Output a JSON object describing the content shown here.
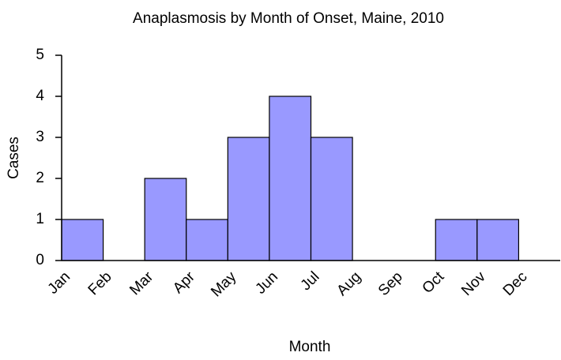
{
  "chart_data": {
    "type": "bar",
    "title": "Anaplasmosis by Month of Onset, Maine, 2010",
    "x_label": "Month",
    "y_label": "Cases",
    "categories": [
      "Jan",
      "Feb",
      "Mar",
      "Apr",
      "May",
      "Jun",
      "Jul",
      "Aug",
      "Sep",
      "Oct",
      "Nov",
      "Dec"
    ],
    "values": [
      1,
      0,
      2,
      1,
      3,
      4,
      3,
      0,
      0,
      1,
      1,
      0
    ],
    "color": "#9999ff",
    "ylim": [
      0,
      5
    ],
    "yticks": [
      0,
      1,
      2,
      3,
      4,
      5
    ],
    "grid": false
  }
}
